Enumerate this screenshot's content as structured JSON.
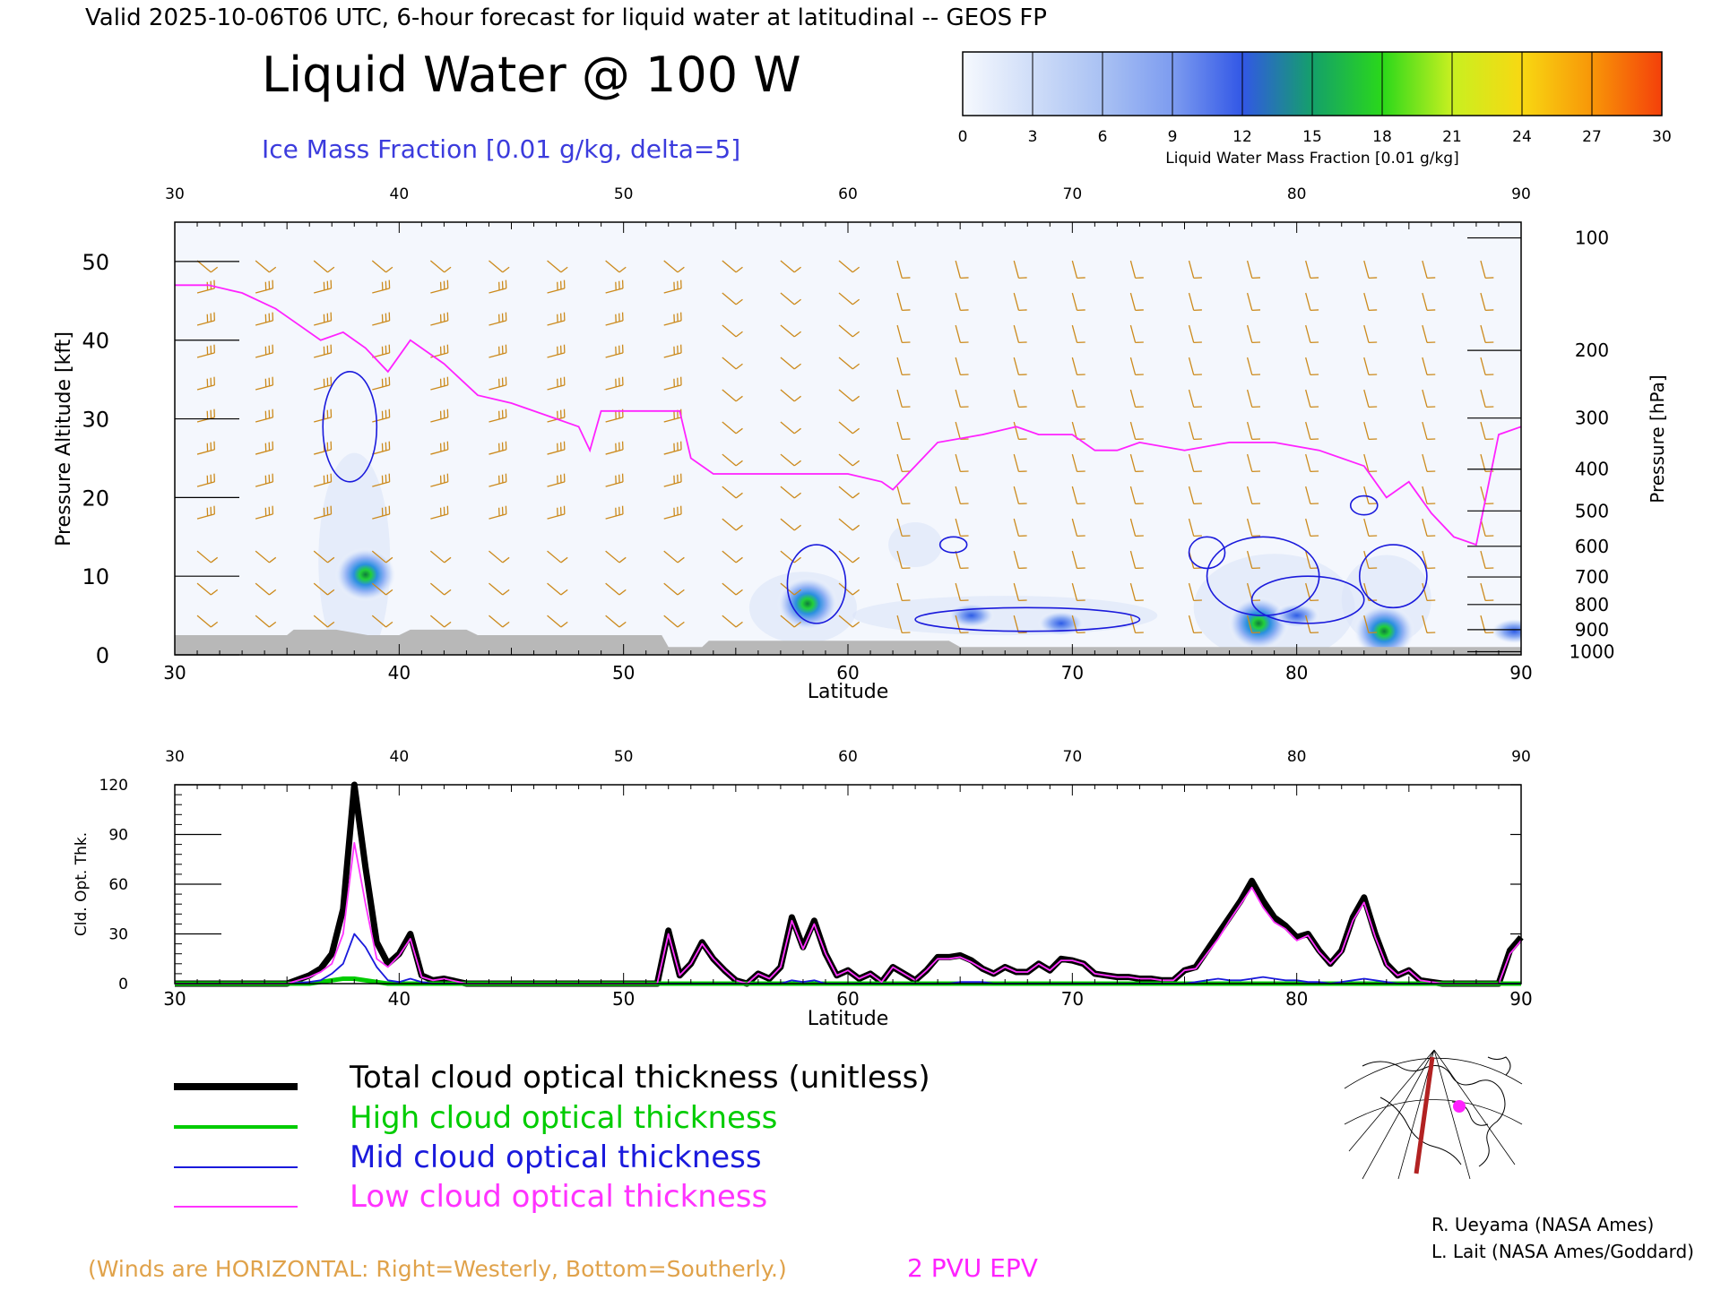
{
  "header": {
    "valid_line": "Valid 2025-10-06T06 UTC, 6-hour forecast for liquid water at latitudinal -- GEOS FP",
    "main_title": "Liquid Water @ 100 W",
    "ice_label": "Ice Mass Fraction [0.01 g/kg, delta=5]"
  },
  "colorbar": {
    "ticks": [
      "0",
      "3",
      "6",
      "9",
      "12",
      "15",
      "18",
      "21",
      "24",
      "27",
      "30"
    ],
    "label": "Liquid Water Mass Fraction [0.01 g/kg]",
    "colors": [
      "#f4f7fd",
      "#c6d6f6",
      "#a3bdf2",
      "#7a9bee",
      "#3a5de8",
      "#1c7fb0",
      "#19c23a",
      "#9be71b",
      "#f5f51e",
      "#f8b30b",
      "#f4520a"
    ]
  },
  "chart_data": [
    {
      "type": "heatmap",
      "xlabel": "Latitude",
      "ylabel": "Pressure Altitude [kft]",
      "y2label": "Pressure [hPa]",
      "xlim": [
        30,
        90
      ],
      "ylim": [
        0,
        55
      ],
      "x_ticks": [
        "30",
        "40",
        "50",
        "60",
        "70",
        "80",
        "90"
      ],
      "y_ticks": [
        "0",
        "10",
        "20",
        "30",
        "40",
        "50"
      ],
      "pressure_ticks": [
        {
          "label": "100",
          "kft": 53
        },
        {
          "label": "200",
          "kft": 38.7
        },
        {
          "label": "300",
          "kft": 30.1
        },
        {
          "label": "400",
          "kft": 23.6
        },
        {
          "label": "500",
          "kft": 18.3
        },
        {
          "label": "600",
          "kft": 13.8
        },
        {
          "label": "700",
          "kft": 9.9
        },
        {
          "label": "800",
          "kft": 6.4
        },
        {
          "label": "900",
          "kft": 3.2
        },
        {
          "label": "1000",
          "kft": 0.4
        }
      ],
      "liquid_water_blobs": [
        {
          "lat": 38.5,
          "kft": 10.2,
          "peak": 18
        },
        {
          "lat": 58.2,
          "kft": 6.5,
          "peak": 16
        },
        {
          "lat": 65.5,
          "kft": 5.0,
          "peak": 10
        },
        {
          "lat": 69.5,
          "kft": 4.0,
          "peak": 8
        },
        {
          "lat": 78.3,
          "kft": 4.0,
          "peak": 17
        },
        {
          "lat": 80.0,
          "kft": 5.0,
          "peak": 9
        },
        {
          "lat": 83.9,
          "kft": 3.0,
          "peak": 12
        },
        {
          "lat": 89.7,
          "kft": 3.0,
          "peak": 10
        }
      ],
      "epv_2pvu_line": {
        "lat": [
          30,
          31.5,
          33,
          34.5,
          35.5,
          36.5,
          37.5,
          38.5,
          39.5,
          40.5,
          42,
          43.5,
          45,
          47,
          48,
          48.5,
          49,
          49.5,
          50,
          51,
          52.5,
          53,
          54,
          56,
          58,
          60,
          61.5,
          62,
          63,
          64,
          66,
          67.5,
          68.5,
          70,
          71,
          72,
          73,
          75,
          77,
          79,
          81,
          83,
          84,
          85,
          86,
          87,
          88,
          89,
          90
        ],
        "kft": [
          47,
          47,
          46,
          44,
          42,
          40,
          41,
          39,
          36,
          40,
          37,
          33,
          32,
          30,
          29,
          26,
          31,
          31,
          31,
          31,
          31,
          25,
          23,
          23,
          23,
          23,
          22,
          21,
          24,
          27,
          28,
          29,
          28,
          28,
          26,
          26,
          27,
          26,
          27,
          27,
          26,
          24,
          20,
          22,
          18,
          15,
          14,
          28,
          29
        ]
      },
      "ice_contours": [
        {
          "lat": 37.8,
          "kft": 29,
          "rx": 1.2,
          "ry": 7
        },
        {
          "lat": 58.6,
          "kft": 9,
          "rx": 1.3,
          "ry": 5
        },
        {
          "lat": 64.7,
          "kft": 14,
          "rx": 0.6,
          "ry": 1
        },
        {
          "lat": 68,
          "kft": 4.5,
          "rx": 5,
          "ry": 1.5
        },
        {
          "lat": 76,
          "kft": 13,
          "rx": 0.8,
          "ry": 2
        },
        {
          "lat": 78.5,
          "kft": 10,
          "rx": 2.5,
          "ry": 5
        },
        {
          "lat": 80.5,
          "kft": 7,
          "rx": 2.5,
          "ry": 3
        },
        {
          "lat": 83,
          "kft": 19,
          "rx": 0.6,
          "ry": 1.2
        },
        {
          "lat": 84.3,
          "kft": 10,
          "rx": 1.5,
          "ry": 4
        }
      ],
      "terrain": {
        "lat": [
          30,
          35,
          35.3,
          37.2,
          38.6,
          40,
          40.5,
          43,
          43.5,
          51.7,
          52,
          53.5,
          53.8,
          64.5,
          65,
          90
        ],
        "kft": [
          2.5,
          2.5,
          3.2,
          3.2,
          2.5,
          2.5,
          3.2,
          3.2,
          2.5,
          2.5,
          1.0,
          1.0,
          1.8,
          1.8,
          1.0,
          1.0
        ]
      }
    },
    {
      "type": "line",
      "xlabel": "Latitude",
      "ylabel": "Cld. Opt. Thk.",
      "xlim": [
        30,
        90
      ],
      "ylim": [
        0,
        120
      ],
      "x_ticks": [
        "30",
        "40",
        "50",
        "60",
        "70",
        "80",
        "90"
      ],
      "y_ticks": [
        "0",
        "30",
        "60",
        "90",
        "120"
      ],
      "x": [
        30,
        32,
        34,
        35,
        36,
        36.5,
        37,
        37.5,
        38,
        38.5,
        39,
        39.5,
        40,
        40.5,
        41,
        41.5,
        42,
        43,
        44,
        46,
        48,
        50,
        51.5,
        52,
        52.5,
        53,
        53.5,
        54,
        54.5,
        55,
        55.5,
        56,
        56.5,
        57,
        57.5,
        58,
        58.5,
        59,
        59.5,
        60,
        60.5,
        61,
        61.5,
        62,
        62.5,
        63,
        63.5,
        64,
        64.5,
        65,
        65.5,
        66,
        66.5,
        67,
        67.5,
        68,
        68.5,
        69,
        69.5,
        70,
        70.5,
        71,
        71.5,
        72,
        72.5,
        73,
        73.5,
        74,
        74.5,
        75,
        75.5,
        76,
        76.5,
        77,
        77.5,
        78,
        78.5,
        79,
        79.5,
        80,
        80.5,
        81,
        81.5,
        82,
        82.5,
        83,
        83.5,
        84,
        84.5,
        85,
        85.5,
        86,
        86.5,
        87,
        88,
        89,
        89.5,
        90
      ],
      "series": [
        {
          "name": "Total cloud optical thickness (unitless)",
          "color": "#000000",
          "values": [
            0,
            0,
            0,
            0,
            5,
            9,
            18,
            45,
            120,
            70,
            25,
            12,
            18,
            30,
            5,
            2,
            3,
            0,
            0,
            0,
            0,
            0,
            0,
            32,
            5,
            12,
            25,
            15,
            8,
            2,
            0,
            6,
            3,
            10,
            40,
            22,
            38,
            18,
            5,
            8,
            3,
            6,
            1,
            10,
            6,
            2,
            8,
            16,
            16,
            17,
            14,
            9,
            6,
            10,
            7,
            7,
            12,
            8,
            15,
            14,
            12,
            6,
            5,
            4,
            4,
            3,
            3,
            2,
            2,
            8,
            10,
            20,
            30,
            40,
            50,
            62,
            50,
            40,
            35,
            28,
            30,
            20,
            12,
            20,
            40,
            52,
            30,
            12,
            5,
            8,
            2,
            1,
            0,
            0,
            0,
            0,
            20,
            28
          ]
        },
        {
          "name": "High cloud optical thickness",
          "color": "#00cc00",
          "values": [
            0,
            0,
            0,
            0,
            0,
            1,
            2,
            3,
            3,
            2,
            1,
            0,
            0,
            0,
            0,
            0,
            0,
            0,
            0,
            0,
            0,
            0,
            0,
            0,
            0,
            0,
            0,
            0,
            0,
            0,
            0,
            0,
            0,
            0,
            0,
            0,
            0,
            0,
            0,
            0,
            0,
            0,
            0,
            0,
            0,
            0,
            0,
            0,
            0,
            0,
            0,
            0,
            0,
            0,
            0,
            0,
            0,
            0,
            0,
            0,
            0,
            0,
            0,
            0,
            0,
            0,
            0,
            0,
            0,
            0,
            0,
            0,
            0,
            0,
            0,
            0,
            0,
            0,
            0,
            0,
            0,
            0,
            0,
            0,
            0,
            0,
            0,
            0,
            0,
            0,
            0,
            0,
            0,
            0,
            0,
            0,
            0,
            0
          ]
        },
        {
          "name": "Mid cloud optical thickness",
          "color": "#1a1adc",
          "values": [
            0,
            0,
            0,
            0,
            1,
            2,
            6,
            12,
            30,
            22,
            10,
            2,
            1,
            3,
            1,
            0,
            0,
            0,
            0,
            0,
            0,
            0,
            0,
            0,
            0,
            0,
            0,
            0,
            0,
            0,
            0,
            0,
            0,
            0,
            2,
            1,
            2,
            0,
            0,
            0,
            0,
            0,
            0,
            0,
            0,
            0,
            0,
            0,
            0,
            1,
            1,
            1,
            0,
            0,
            0,
            0,
            0,
            0,
            0,
            0,
            0,
            0,
            0,
            0,
            0,
            0,
            0,
            0,
            0,
            0,
            1,
            2,
            3,
            2,
            2,
            3,
            4,
            3,
            2,
            2,
            1,
            1,
            0,
            1,
            2,
            3,
            2,
            1,
            0,
            0,
            0,
            0,
            0,
            0,
            0,
            0,
            0,
            0
          ]
        },
        {
          "name": "Low cloud optical thickness",
          "color": "#ff33ff",
          "values": [
            0,
            0,
            0,
            0,
            4,
            7,
            12,
            30,
            85,
            48,
            15,
            10,
            17,
            27,
            4,
            2,
            3,
            0,
            0,
            0,
            0,
            0,
            0,
            30,
            5,
            12,
            24,
            15,
            8,
            2,
            0,
            6,
            3,
            10,
            38,
            21,
            36,
            18,
            5,
            8,
            3,
            6,
            1,
            10,
            6,
            2,
            8,
            15,
            15,
            16,
            13,
            9,
            6,
            10,
            7,
            7,
            12,
            8,
            14,
            14,
            12,
            6,
            5,
            4,
            4,
            3,
            3,
            2,
            2,
            8,
            9,
            18,
            27,
            38,
            48,
            58,
            46,
            37,
            33,
            26,
            29,
            19,
            12,
            19,
            38,
            49,
            28,
            11,
            5,
            8,
            2,
            1,
            0,
            0,
            0,
            0,
            18,
            26
          ]
        }
      ]
    }
  ],
  "legend": [
    {
      "label": "Total cloud optical thickness (unitless)",
      "color": "#000000"
    },
    {
      "label": "High cloud optical thickness",
      "color": "#00cc00"
    },
    {
      "label": "Mid cloud optical thickness",
      "color": "#1a1adc"
    },
    {
      "label": "Low cloud optical thickness",
      "color": "#ff33ff"
    }
  ],
  "footer": {
    "winds_note": "(Winds are HORIZONTAL: Right=Westerly, Bottom=Southerly.)",
    "epv_label": "2 PVU EPV",
    "credit1": "R. Ueyama (NASA Ames)",
    "credit2": "L. Lait (NASA Ames/Goddard)"
  },
  "colors": {
    "wind_barb": "#cc8a1c",
    "epv": "#ff22ff",
    "ice_contour": "#1a1adc",
    "terrain": "#b8b8b8",
    "winds_note": "#e0a24a",
    "ice_label": "#3b3bdd"
  }
}
